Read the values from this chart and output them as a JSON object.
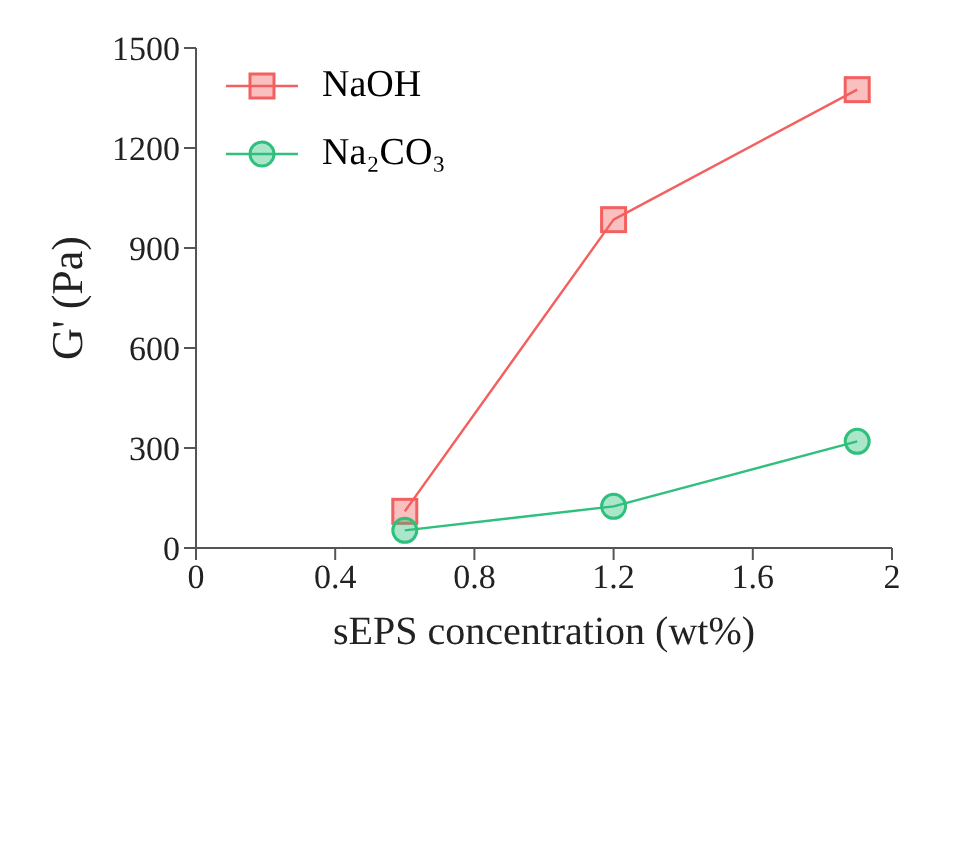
{
  "chart_data": {
    "type": "line",
    "xlabel": "sEPS concentration (wt%)",
    "ylabel": "G' (Pa)",
    "xlim": [
      0,
      2
    ],
    "xticks": [
      0,
      0.4,
      0.8,
      1.2,
      1.6,
      2
    ],
    "ylim": [
      0,
      1500
    ],
    "yticks": [
      0,
      300,
      600,
      900,
      1200,
      1500
    ],
    "grid": false,
    "legend": "top left",
    "line_style": "solid",
    "x": [
      0.6,
      1.2,
      1.9
    ],
    "series": [
      {
        "name": "NaOH",
        "color": "#f26060",
        "marker": "square",
        "values": [
          110,
          985,
          1375
        ]
      },
      {
        "name": "Na₂CO₃",
        "color": "#2ec07c",
        "marker": "circle",
        "values": [
          53,
          125,
          320
        ]
      }
    ]
  }
}
